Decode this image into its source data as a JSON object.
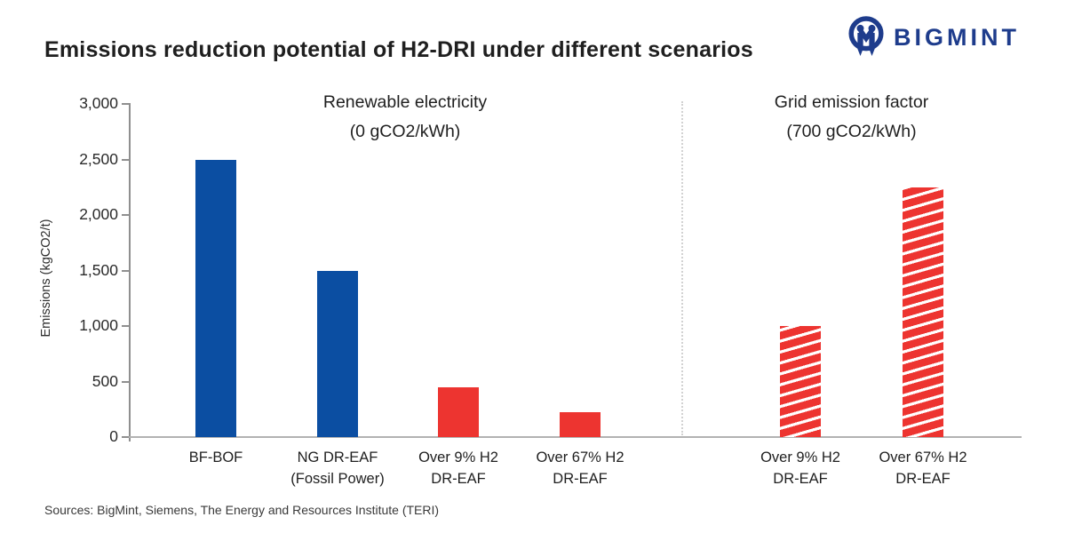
{
  "header": {
    "logo_text": "BIGMINT"
  },
  "footer": {
    "sources": "Sources: BigMint, Siemens, The Energy and Resources Institute (TERI)"
  },
  "chart_data": {
    "type": "bar",
    "title": "Emissions reduction potential of H2-DRI under different scenarios",
    "xlabel": "",
    "ylabel": "Emissions (kgCO2/t)",
    "ylim": [
      0,
      3000
    ],
    "ytick_interval": 500,
    "ytick_labels": [
      "0",
      "500",
      "1,000",
      "1,500",
      "2,000",
      "2,500",
      "3,000"
    ],
    "grid": false,
    "legend": false,
    "colors": {
      "blue": "#0b4ea2",
      "red": "#ed3430",
      "logo_navy": "#1e3c8c"
    },
    "groups": [
      {
        "title": "Renewable electricity",
        "subtitle": "(0 gCO2/kWh)"
      },
      {
        "title": "Grid emission factor",
        "subtitle": "(700 gCO2/kWh)"
      }
    ],
    "bars": [
      {
        "label_lines": [
          "BF-BOF"
        ],
        "value": 2500,
        "color": "#0b4ea2",
        "pattern": "solid",
        "group": 0
      },
      {
        "label_lines": [
          "NG DR-EAF",
          "(Fossil Power)"
        ],
        "value": 1500,
        "color": "#0b4ea2",
        "pattern": "solid",
        "group": 0
      },
      {
        "label_lines": [
          "Over 9% H2",
          "DR-EAF"
        ],
        "value": 450,
        "color": "#ed3430",
        "pattern": "solid",
        "group": 0
      },
      {
        "label_lines": [
          "Over 67% H2",
          "DR-EAF"
        ],
        "value": 225,
        "color": "#ed3430",
        "pattern": "solid",
        "group": 0
      },
      {
        "label_lines": [
          "Over 9% H2",
          "DR-EAF"
        ],
        "value": 1000,
        "color": "#ed3430",
        "pattern": "hatched",
        "group": 1
      },
      {
        "label_lines": [
          "Over 67% H2",
          "DR-EAF"
        ],
        "value": 2250,
        "color": "#ed3430",
        "pattern": "hatched",
        "group": 1
      }
    ]
  }
}
